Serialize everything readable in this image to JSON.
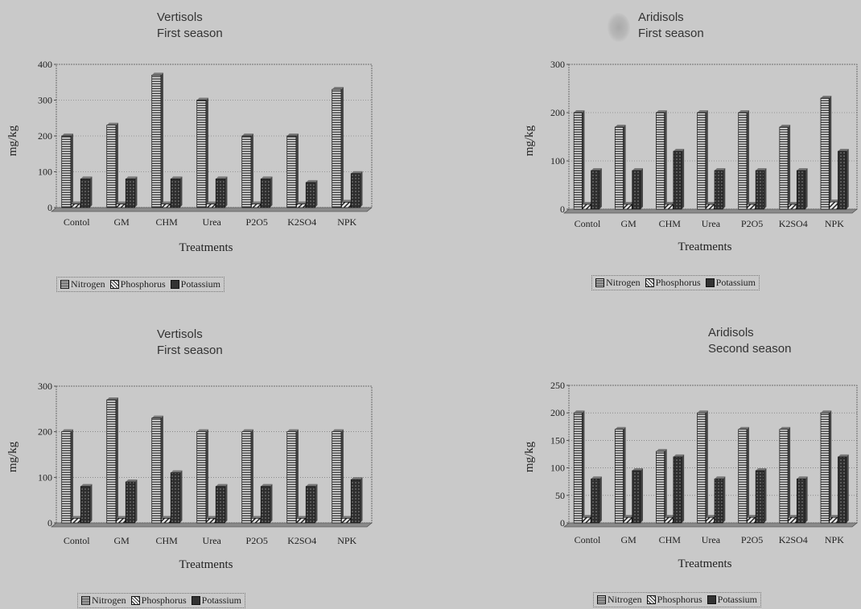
{
  "legend": {
    "nitrogen": "Nitrogen",
    "phosphorus": "Phosphorus",
    "potassium": "Potassium"
  },
  "chart_data": [
    {
      "type": "bar",
      "title": "Vertisols",
      "subtitle": "First season",
      "xlabel": "Treatments",
      "ylabel": "mg/kg",
      "ylim": [
        0,
        400
      ],
      "yticks": [
        0,
        100,
        200,
        300,
        400
      ],
      "categories": [
        "Contol",
        "GM",
        "CHM",
        "Urea",
        "P2O5",
        "K2SO4",
        "NPK"
      ],
      "series": [
        {
          "name": "Nitrogen",
          "values": [
            200,
            230,
            370,
            300,
            200,
            200,
            330
          ]
        },
        {
          "name": "Phosphorus",
          "values": [
            10,
            10,
            10,
            10,
            10,
            10,
            15
          ]
        },
        {
          "name": "Potassium",
          "values": [
            80,
            80,
            80,
            80,
            80,
            70,
            95
          ]
        }
      ],
      "grid": "horizontal dotted",
      "legend_position": "bottom-left"
    },
    {
      "type": "bar",
      "title": "Aridisols",
      "subtitle": "First season",
      "xlabel": "Treatments",
      "ylabel": "mg/kg",
      "ylim": [
        0,
        300
      ],
      "yticks": [
        0,
        100,
        200,
        300
      ],
      "categories": [
        "Contol",
        "GM",
        "CHM",
        "Urea",
        "P2O5",
        "K2SO4",
        "NPK"
      ],
      "series": [
        {
          "name": "Nitrogen",
          "values": [
            200,
            170,
            200,
            200,
            200,
            170,
            230
          ]
        },
        {
          "name": "Phosphorus",
          "values": [
            10,
            10,
            10,
            10,
            10,
            10,
            15
          ]
        },
        {
          "name": "Potassium",
          "values": [
            80,
            80,
            120,
            80,
            80,
            80,
            120
          ]
        }
      ],
      "grid": "horizontal dotted",
      "legend_position": "bottom-center"
    },
    {
      "type": "bar",
      "title": "Vertisols",
      "subtitle": "First season",
      "xlabel": "Treatments",
      "ylabel": "mg/kg",
      "ylim": [
        0,
        300
      ],
      "yticks": [
        0,
        100,
        200,
        300
      ],
      "categories": [
        "Contol",
        "GM",
        "CHM",
        "Urea",
        "P2O5",
        "K2SO4",
        "NPK"
      ],
      "series": [
        {
          "name": "Nitrogen",
          "values": [
            200,
            270,
            230,
            200,
            200,
            200,
            200
          ]
        },
        {
          "name": "Phosphorus",
          "values": [
            10,
            10,
            10,
            10,
            10,
            10,
            10
          ]
        },
        {
          "name": "Potassium",
          "values": [
            80,
            90,
            110,
            80,
            80,
            80,
            95
          ]
        }
      ],
      "grid": "horizontal dotted",
      "legend_position": "bottom-left"
    },
    {
      "type": "bar",
      "title": "Aridisols",
      "subtitle": "Second season",
      "xlabel": "Treatments",
      "ylabel": "mg/kg",
      "ylim": [
        0,
        250
      ],
      "yticks": [
        0,
        50,
        100,
        150,
        200,
        250
      ],
      "categories": [
        "Contol",
        "GM",
        "CHM",
        "Urea",
        "P2O5",
        "K2SO4",
        "NPK"
      ],
      "series": [
        {
          "name": "Nitrogen",
          "values": [
            200,
            170,
            130,
            200,
            170,
            170,
            200
          ]
        },
        {
          "name": "Phosphorus",
          "values": [
            10,
            10,
            10,
            10,
            10,
            10,
            10
          ]
        },
        {
          "name": "Potassium",
          "values": [
            80,
            95,
            120,
            80,
            95,
            80,
            120
          ]
        }
      ],
      "grid": "horizontal dotted",
      "legend_position": "bottom-center"
    }
  ]
}
